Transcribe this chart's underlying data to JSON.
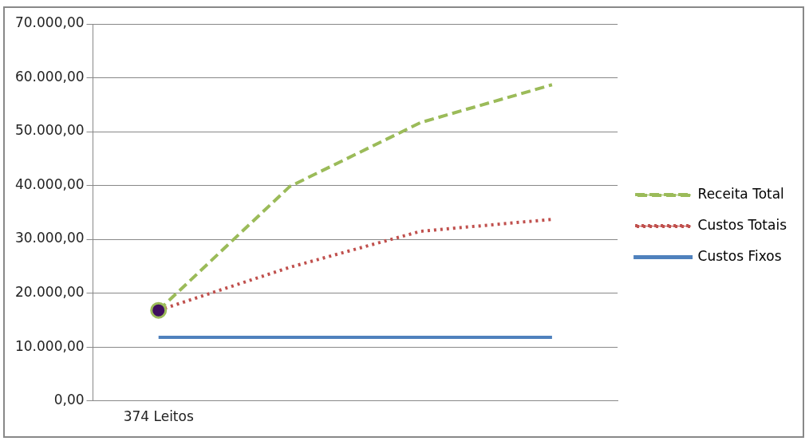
{
  "chart_data": {
    "type": "line",
    "categories": [
      "374 Leitos",
      null,
      null,
      null
    ],
    "series": [
      {
        "name": "Receita Total",
        "color": "#9bbb59",
        "values": [
          16800,
          39800,
          51700,
          58700
        ],
        "line_style": "dashed"
      },
      {
        "name": "Custos Totais",
        "color": "#c0504d",
        "values": [
          16800,
          24800,
          31500,
          33700
        ],
        "line_style": "dotted"
      },
      {
        "name": "Custos Fixos",
        "color": "#4f81bd",
        "values": [
          11800,
          11800,
          11800,
          11800
        ],
        "line_style": "solid"
      },
      {
        "type": "scatter",
        "color": "#3f0f5f",
        "values": [
          16800,
          null,
          null,
          null
        ],
        "marker": "circle"
      }
    ],
    "ylim": [
      0,
      70000
    ],
    "yticks": [
      {
        "value": 0,
        "label": "0,00"
      },
      {
        "value": 10000,
        "label": "10.000,00"
      },
      {
        "value": 20000,
        "label": "20.000,00"
      },
      {
        "value": 30000,
        "label": "30.000,00"
      },
      {
        "value": 40000,
        "label": "40.000,00"
      },
      {
        "value": 50000,
        "label": "50.000,00"
      },
      {
        "value": 60000,
        "label": "60.000,00"
      },
      {
        "value": 70000,
        "label": "70.000,00"
      }
    ],
    "grid": "y",
    "legend": "right",
    "marker": "none"
  }
}
